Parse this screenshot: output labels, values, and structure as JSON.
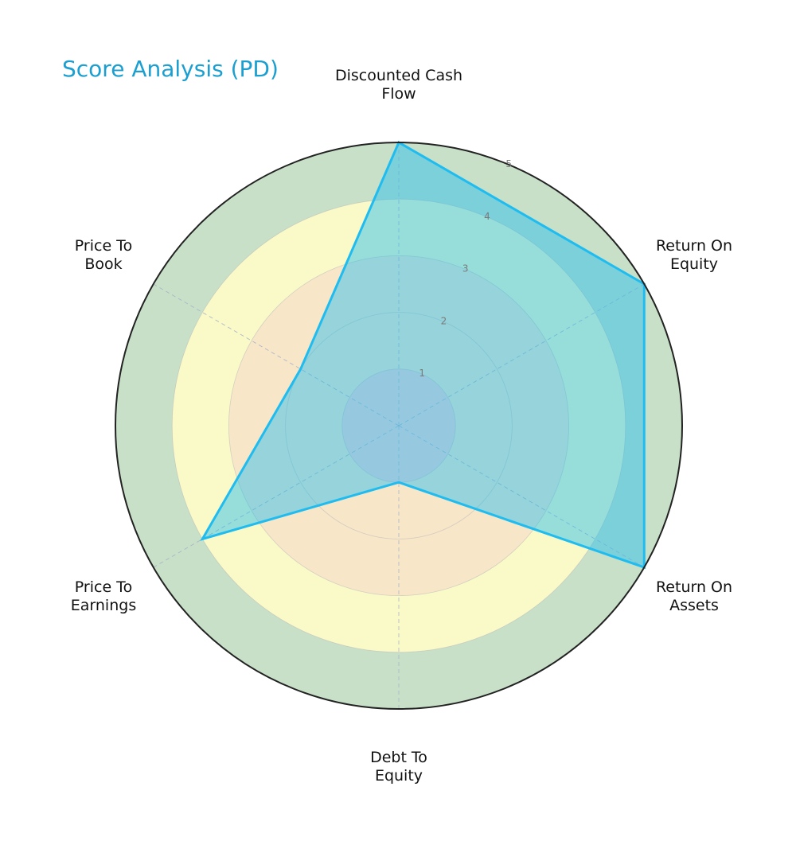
{
  "title": "Score Analysis (PD)",
  "chart_data": {
    "type": "radar",
    "title": "Score Analysis (PD)",
    "categories": [
      "Discounted Cash Flow",
      "Return On Equity",
      "Return On Assets",
      "Debt To Equity",
      "Price To Earnings",
      "Price To Book"
    ],
    "series": [
      {
        "name": "PD",
        "values": [
          5,
          5,
          5,
          1,
          4,
          2
        ],
        "color": "#1ebcf0"
      }
    ],
    "rlim": [
      0,
      5
    ],
    "r_ticks": [
      1,
      2,
      3,
      4,
      5
    ],
    "zones": [
      {
        "from": 0,
        "to": 1,
        "color": "#f8d4d4"
      },
      {
        "from": 1,
        "to": 3,
        "color": "#f8e6c8"
      },
      {
        "from": 3,
        "to": 4,
        "color": "#fafac8"
      },
      {
        "from": 4,
        "to": 5,
        "color": "#c8e0c8"
      }
    ],
    "grid": true
  },
  "labels": [
    [
      "Discounted Cash",
      "Flow"
    ],
    [
      "Return On",
      "Equity"
    ],
    [
      "Return On",
      "Assets"
    ],
    [
      "Debt To",
      "Equity"
    ],
    [
      "Price To",
      "Earnings"
    ],
    [
      "Price To",
      "Book"
    ]
  ],
  "ticks": [
    "1",
    "2",
    "3",
    "4",
    "5"
  ]
}
